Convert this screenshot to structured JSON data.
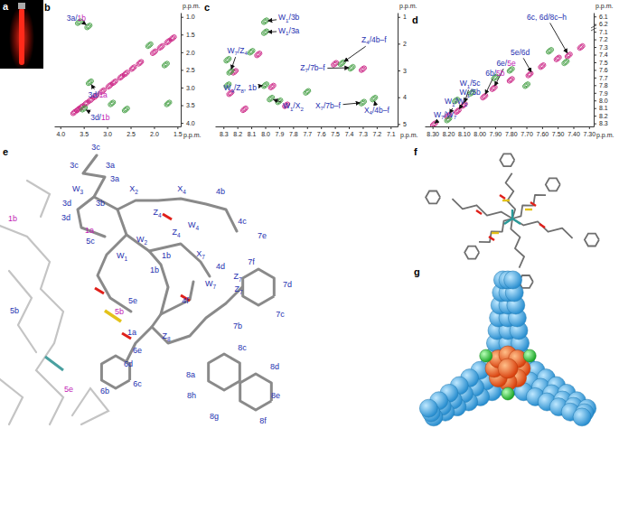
{
  "panel_labels": [
    "a",
    "b",
    "c",
    "d",
    "e",
    "f",
    "g"
  ],
  "chart_data": [
    {
      "type": "nmr_2d",
      "xlabel": "p.p.m.",
      "ylabel": "p.p.m.",
      "label_color": "#2530b0",
      "xlim": [
        4.13,
        1.43
      ],
      "ylim": [
        0.88,
        4.1
      ],
      "xticks": [
        {
          "value": 4,
          "label": "4.0"
        },
        3.5,
        {
          "value": 3,
          "label": "3.0"
        },
        2.5,
        {
          "value": 2,
          "label": "2.0"
        },
        1.5
      ],
      "yticks": [
        {
          "value": 1,
          "label": "1.0"
        },
        1.5,
        {
          "value": 2,
          "label": "2.0"
        },
        2.5,
        {
          "value": 3,
          "label": "3.0"
        },
        3.5,
        {
          "value": 4,
          "label": "4.0"
        }
      ],
      "peaks": [
        {
          "color": "#c8187e",
          "x": [
            3.7,
            3.62,
            3.55,
            3.45,
            3.35,
            3.25,
            3.1,
            2.95,
            2.85,
            2.7,
            2.6,
            2.45,
            2.3,
            2.0,
            1.85,
            1.7,
            1.6
          ],
          "y": [
            3.7,
            3.62,
            3.55,
            3.45,
            3.35,
            3.25,
            3.1,
            2.95,
            2.85,
            2.7,
            2.6,
            2.45,
            2.3,
            2.0,
            1.85,
            1.7,
            1.6
          ]
        },
        {
          "color": "#3d9a3d",
          "x": [
            3.4,
            3.37,
            3.5,
            2.9,
            1.75,
            1.7,
            2.1,
            3.6,
            2.6
          ],
          "y": [
            1.27,
            2.85,
            3.6,
            3.45,
            2.35,
            3.45,
            1.8,
            1.15,
            3.62
          ]
        }
      ],
      "annotations": [
        {
          "parts": [
            {
              "text": "3a/"
            },
            {
              "text": "1b",
              "color": "#c21cb5"
            }
          ],
          "x": 3.66,
          "y": 1.1,
          "arrow_to": [
            3.4,
            1.27
          ]
        },
        {
          "parts": [
            {
              "text": "3d/"
            },
            {
              "text": "1a",
              "color": "#c21cb5"
            }
          ],
          "x": 3.2,
          "y": 3.28,
          "arrow_to": [
            3.37,
            2.85
          ]
        },
        {
          "parts": [
            {
              "text": "3d/"
            },
            {
              "text": "1b",
              "color": "#c21cb5"
            }
          ],
          "x": 3.15,
          "y": 3.92,
          "arrow_to": [
            3.5,
            3.6
          ]
        }
      ]
    },
    {
      "type": "nmr_2d",
      "xlabel": "p.p.m.",
      "ylabel": "p.p.m.",
      "label_color": "#2530b0",
      "xlim": [
        8.36,
        7.05
      ],
      "ylim": [
        0.84,
        5.09
      ],
      "xticks": [
        8.3,
        8.2,
        8.1,
        {
          "value": 8,
          "label": "8.0"
        },
        7.9,
        7.8,
        7.7,
        7.6,
        7.5,
        7.4,
        7.3,
        7.2,
        7.1
      ],
      "yticks": [
        1,
        2,
        3,
        4,
        5
      ],
      "peaks": [
        {
          "color": "#c8187e",
          "x": [
            8.22,
            8.25,
            7.95,
            7.5,
            7.3,
            7.85,
            8.15,
            8.05
          ],
          "y": [
            3.05,
            3.85,
            3.6,
            2.75,
            2.95,
            4.3,
            4.45,
            2.4
          ]
        },
        {
          "color": "#3d9a3d",
          "x": [
            8.0,
            8.0,
            8.25,
            8.27,
            8.27,
            8.0,
            7.96,
            7.45,
            7.38,
            7.3,
            7.22,
            7.9,
            8.1,
            7.7
          ],
          "y": [
            1.16,
            1.57,
            3.05,
            2.6,
            3.55,
            3.55,
            4.05,
            2.73,
            2.9,
            4.2,
            4.05,
            4.15,
            2.3,
            3.8
          ]
        }
      ],
      "annotations": [
        {
          "parts": [
            {
              "text": "W",
              "sub": "1"
            },
            {
              "text": "/3b"
            }
          ],
          "x": 7.83,
          "y": 1.12,
          "arrow_to": [
            8.0,
            1.16
          ]
        },
        {
          "parts": [
            {
              "text": "W",
              "sub": "1"
            },
            {
              "text": "/3a"
            }
          ],
          "x": 7.83,
          "y": 1.6,
          "arrow_to": [
            8.0,
            1.57
          ]
        },
        {
          "parts": [
            {
              "text": "W",
              "sub": "7"
            },
            {
              "text": "/Z",
              "sub": "4"
            }
          ],
          "x": 8.2,
          "y": 2.35,
          "arrow_to": [
            8.25,
            3.05
          ]
        },
        {
          "parts": [
            {
              "text": "W",
              "sub": "4"
            },
            {
              "text": "/Z",
              "sub": "8"
            },
            {
              "text": ", 1b"
            }
          ],
          "x": 8.18,
          "y": 3.75,
          "arrow_to": [
            8.0,
            3.55
          ]
        },
        {
          "parts": [
            {
              "text": "W",
              "sub": "1"
            },
            {
              "text": "/X",
              "sub": "2"
            }
          ],
          "x": 7.8,
          "y": 4.42,
          "arrow_to": [
            7.96,
            4.05
          ]
        },
        {
          "parts": [
            {
              "text": "Z",
              "sub": "4"
            },
            {
              "text": "/4b–f"
            }
          ],
          "x": 7.22,
          "y": 1.95,
          "arrow_to": [
            7.45,
            2.73
          ]
        },
        {
          "parts": [
            {
              "text": "Z",
              "sub": "7"
            },
            {
              "text": "/7b–f"
            }
          ],
          "x": 7.66,
          "y": 3.0,
          "arrow_to": [
            7.38,
            2.9
          ]
        },
        {
          "parts": [
            {
              "text": "X",
              "sub": "7"
            },
            {
              "text": "/7b–f"
            }
          ],
          "x": 7.55,
          "y": 4.4,
          "arrow_to": [
            7.3,
            4.2
          ]
        },
        {
          "parts": [
            {
              "text": "X",
              "sub": "4"
            },
            {
              "text": "/4b–f"
            }
          ],
          "x": 7.2,
          "y": 4.58,
          "arrow_to": [
            7.22,
            4.05
          ]
        }
      ]
    },
    {
      "type": "nmr_2d",
      "xlabel": "p.p.m.",
      "ylabel": "p.p.m.",
      "label_color": "#2530b0",
      "xlim": [
        8.35,
        7.27
      ],
      "ylim": [
        6.05,
        8.34
      ],
      "ybreak": [
        6.2,
        7.1
      ],
      "xticks": [
        {
          "value": 8.3,
          "label": "8.30"
        },
        {
          "value": 8.2,
          "label": "8.20"
        },
        {
          "value": 8.1,
          "label": "8.10"
        },
        {
          "value": 8,
          "label": "8.00"
        },
        {
          "value": 7.9,
          "label": "7.90"
        },
        {
          "value": 7.8,
          "label": "7.80"
        },
        {
          "value": 7.7,
          "label": "7.70"
        },
        {
          "value": 7.6,
          "label": "7.60"
        },
        {
          "value": 7.5,
          "label": "7.50"
        },
        {
          "value": 7.4,
          "label": "7.40"
        },
        {
          "value": 7.3,
          "label": "7.30"
        }
      ],
      "yticks": [
        6.1,
        6.2,
        7.1,
        7.2,
        7.3,
        7.4,
        7.5,
        7.6,
        7.7,
        7.8,
        7.9,
        {
          "value": 8,
          "label": "8.0"
        },
        8.1,
        8.2,
        8.3
      ],
      "peaks": [
        {
          "color": "#c8187e",
          "x": [
            8.29,
            8.2,
            8.14,
            8.1,
            7.97,
            7.91,
            7.8,
            7.68,
            7.6,
            7.5,
            7.43,
            7.35
          ],
          "y": [
            8.31,
            8.2,
            8.14,
            8.06,
            7.95,
            7.84,
            7.73,
            7.66,
            7.55,
            7.45,
            7.41,
            7.3
          ]
        },
        {
          "color": "#3d9a3d",
          "x": [
            8.2,
            8.05,
            7.8,
            7.7,
            7.55,
            7.45,
            7.9,
            8.15
          ],
          "y": [
            8.25,
            7.9,
            7.6,
            7.8,
            7.35,
            7.5,
            7.7,
            8.0
          ]
        }
      ],
      "annotations": [
        {
          "parts": [
            {
              "text": "6c, 6d/8c–h"
            }
          ],
          "x": 7.57,
          "y": 6.15,
          "arrow_to": [
            7.43,
            7.41
          ]
        },
        {
          "parts": [
            {
              "text": "5e/6d"
            }
          ],
          "x": 7.74,
          "y": 7.41,
          "arrow_to": [
            7.66,
            7.66
          ]
        },
        {
          "parts": [
            {
              "text": "6e/"
            },
            {
              "text": "5e",
              "color": "#c21cb5"
            }
          ],
          "x": 7.83,
          "y": 7.55,
          "arrow_to": [
            7.91,
            7.84
          ]
        },
        {
          "parts": [
            {
              "text": "6b/"
            },
            {
              "text": "5b",
              "color": "#c21cb5"
            }
          ],
          "x": 7.9,
          "y": 7.68,
          "arrow_to": [
            7.97,
            7.95
          ]
        },
        {
          "parts": [
            {
              "text": "W",
              "sub": "1"
            },
            {
              "text": "/5c"
            }
          ],
          "x": 8.06,
          "y": 7.81,
          "arrow_to": [
            8.1,
            8.06
          ]
        },
        {
          "parts": [
            {
              "text": "W",
              "sub": "1"
            },
            {
              "text": "/5b"
            }
          ],
          "x": 8.06,
          "y": 7.93,
          "arrow_to": [
            8.14,
            8.14
          ]
        },
        {
          "parts": [
            {
              "text": "W",
              "sub": "1"
            },
            {
              "text": "/W",
              "sub": "2"
            }
          ],
          "x": 8.15,
          "y": 8.05,
          "arrow_to": [
            8.2,
            8.2
          ]
        },
        {
          "parts": [
            {
              "text": "W",
              "sub": "7"
            },
            {
              "text": "/W",
              "sub": "7"
            }
          ],
          "x": 8.22,
          "y": 8.22,
          "arrow_to": [
            8.3,
            8.32
          ]
        }
      ]
    }
  ],
  "structure": {
    "label_color": "#2530b0",
    "labels": [
      {
        "text": "3c"
      },
      {
        "text": "3c"
      },
      {
        "text": "3a"
      },
      {
        "text": "3a"
      },
      {
        "text": "W",
        "sub": "3"
      },
      {
        "text": "X",
        "sub": "2"
      },
      {
        "text": "X",
        "sub": "4"
      },
      {
        "text": "4b"
      },
      {
        "text": "3d"
      },
      {
        "text": "3b"
      },
      {
        "text": "3d"
      },
      {
        "text": "Z",
        "sub": "4"
      },
      {
        "text": "Z",
        "sub": "4"
      },
      {
        "text": "W",
        "sub": "4"
      },
      {
        "text": "4c"
      },
      {
        "text": "W",
        "sub": "2"
      },
      {
        "text": "1b",
        "color": "#c21cb5"
      },
      {
        "text": "1a",
        "color": "#c21cb5"
      },
      {
        "text": "5c"
      },
      {
        "text": "W",
        "sub": "1"
      },
      {
        "text": "1b"
      },
      {
        "text": "1b"
      },
      {
        "text": "X",
        "sub": "7"
      },
      {
        "text": "4d"
      },
      {
        "text": "Z",
        "sub": "7"
      },
      {
        "text": "Z",
        "sub": "7"
      },
      {
        "text": "7f"
      },
      {
        "text": "7e"
      },
      {
        "text": "7d"
      },
      {
        "text": "4f"
      },
      {
        "text": "W",
        "sub": "7"
      },
      {
        "text": "5b"
      },
      {
        "text": "5e"
      },
      {
        "text": "5b",
        "color": "#c21cb5"
      },
      {
        "text": "1a"
      },
      {
        "text": "Z",
        "sub": "8"
      },
      {
        "text": "6e"
      },
      {
        "text": "6d"
      },
      {
        "text": "7b"
      },
      {
        "text": "7c"
      },
      {
        "text": "8c"
      },
      {
        "text": "8a"
      },
      {
        "text": "8d"
      },
      {
        "text": "6b"
      },
      {
        "text": "6c"
      },
      {
        "text": "8h"
      },
      {
        "text": "8e"
      },
      {
        "text": "5e",
        "color": "#c21cb5"
      },
      {
        "text": "8g"
      },
      {
        "text": "8f"
      }
    ]
  }
}
